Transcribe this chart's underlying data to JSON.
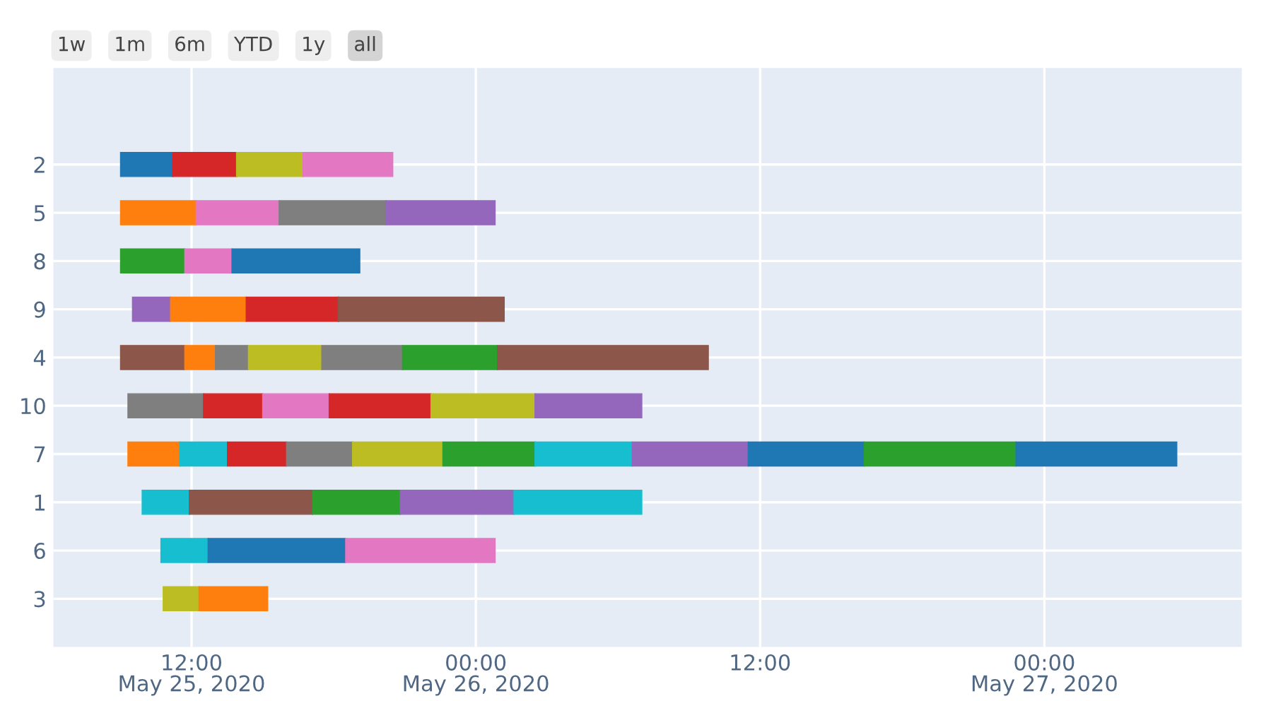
{
  "chart_data": {
    "type": "bar",
    "orientation": "horizontal",
    "categories": [
      "2",
      "5",
      "8",
      "9",
      "4",
      "10",
      "7",
      "1",
      "6",
      "3"
    ],
    "series": [
      {
        "values": [
          0.092,
          0.133,
          0.113,
          0.067,
          0.113,
          0.133,
          0.092,
          0.083,
          0.083,
          0.063
        ],
        "base": [
          18407.375,
          18407.375,
          18407.375,
          18407.396,
          18407.375,
          18407.388,
          18407.388,
          18407.413,
          18407.446,
          18407.45
        ],
        "colors": [
          "#1f77b4",
          "#ff7f0e",
          "#2ca02c",
          "#9467bd",
          "#8c564b",
          "#7f7f7f",
          "#ff7f0e",
          "#17becf",
          "#17becf",
          "#bcbd22"
        ]
      },
      {
        "values": [
          0.113,
          0.146,
          0.083,
          0.133,
          0.054,
          0.104,
          0.083,
          0.217,
          0.242,
          0.121
        ],
        "base": [
          18407.467,
          18407.508,
          18407.488,
          18407.463,
          18407.488,
          18407.521,
          18407.479,
          18407.496,
          18407.529,
          18407.513
        ],
        "colors": [
          "#d62728",
          "#e377c2",
          "#e377c2",
          "#ff7f0e",
          "#ff7f0e",
          "#d62728",
          "#17becf",
          "#8c564b",
          "#1f77b4",
          "#ff7f0e"
        ]
      },
      {
        "values": [
          0.117,
          0.188,
          0.225,
          0.163,
          0.058,
          0.117,
          0.104,
          0.154,
          0.263,
          null
        ],
        "base": [
          18407.579,
          18407.654,
          18407.571,
          18407.596,
          18407.542,
          18407.625,
          18407.563,
          18407.713,
          18407.771,
          null
        ],
        "colors": [
          "#bcbd22",
          "#7f7f7f",
          "#1f77b4",
          "#d62728",
          "#7f7f7f",
          "#e377c2",
          "#d62728",
          "#2ca02c",
          "#e377c2",
          null
        ]
      },
      {
        "values": [
          0.158,
          0.192,
          null,
          0.292,
          0.129,
          0.179,
          0.117,
          0.2,
          null,
          null
        ],
        "base": [
          18407.696,
          18407.842,
          null,
          18407.758,
          18407.6,
          18407.742,
          18407.667,
          18407.867,
          null,
          null
        ],
        "colors": [
          "#e377c2",
          "#9467bd",
          null,
          "#8c564b",
          "#bcbd22",
          "#d62728",
          "#7f7f7f",
          "#9467bd",
          null,
          null
        ]
      },
      {
        "values": [
          null,
          null,
          null,
          null,
          0.142,
          0.183,
          0.158,
          0.225,
          null,
          null
        ],
        "base": [
          null,
          null,
          null,
          null,
          18407.729,
          18407.921,
          18407.783,
          18408.067,
          null,
          null
        ],
        "colors": [
          null,
          null,
          null,
          null,
          "#7f7f7f",
          "#bcbd22",
          "#bcbd22",
          "#17becf",
          null,
          null
        ]
      },
      {
        "values": [
          null,
          null,
          null,
          null,
          0.167,
          0.188,
          0.163,
          null,
          null,
          null
        ],
        "base": [
          null,
          null,
          null,
          null,
          18407.871,
          18408.104,
          18407.942,
          null,
          null,
          null
        ],
        "colors": [
          null,
          null,
          null,
          null,
          "#2ca02c",
          "#9467bd",
          "#2ca02c",
          null,
          null,
          null
        ]
      },
      {
        "values": [
          null,
          null,
          null,
          null,
          0.371,
          null,
          0.171,
          null,
          null,
          null
        ],
        "base": [
          null,
          null,
          null,
          null,
          18408.038,
          null,
          18408.104,
          null,
          null,
          null
        ],
        "colors": [
          null,
          null,
          null,
          null,
          "#8c564b",
          null,
          "#17becf",
          null,
          null,
          null
        ]
      },
      {
        "values": [
          null,
          null,
          null,
          null,
          null,
          null,
          0.204,
          null,
          null,
          null
        ],
        "base": [
          null,
          null,
          null,
          null,
          null,
          null,
          18408.275,
          null,
          null,
          null
        ],
        "colors": [
          null,
          null,
          null,
          null,
          null,
          null,
          "#9467bd",
          null,
          null,
          null
        ]
      },
      {
        "values": [
          null,
          null,
          null,
          null,
          null,
          null,
          0.204,
          null,
          null,
          null
        ],
        "base": [
          null,
          null,
          null,
          null,
          null,
          null,
          18408.479,
          null,
          null,
          null
        ],
        "colors": [
          null,
          null,
          null,
          null,
          null,
          null,
          "#1f77b4",
          null,
          null,
          null
        ]
      },
      {
        "values": [
          null,
          null,
          null,
          null,
          null,
          null,
          0.267,
          null,
          null,
          null
        ],
        "base": [
          null,
          null,
          null,
          null,
          null,
          null,
          18408.683,
          null,
          null,
          null
        ],
        "colors": [
          null,
          null,
          null,
          null,
          null,
          null,
          "#2ca02c",
          null,
          null,
          null
        ]
      },
      {
        "values": [
          null,
          null,
          null,
          null,
          null,
          null,
          0.283,
          null,
          null,
          null
        ],
        "base": [
          null,
          null,
          null,
          null,
          null,
          null,
          18408.95,
          null,
          null,
          null
        ],
        "colors": [
          null,
          null,
          null,
          null,
          null,
          null,
          "#1f77b4",
          null,
          null,
          null
        ]
      }
    ],
    "xlim": [
      "2020-05-25T06:10",
      "2020-05-27T08:20"
    ],
    "xticks": [
      {
        "value": "2020-05-25T12:00",
        "label": "12:00\nMay 25, 2020"
      },
      {
        "value": "2020-05-26T00:00",
        "label": "00:00\nMay 26, 2020"
      },
      {
        "value": "2020-05-26T12:00",
        "label": "12:00"
      },
      {
        "value": "2020-05-27T00:00",
        "label": "00:00\nMay 27, 2020"
      }
    ],
    "annotations": [
      "1w",
      "1m",
      "6m",
      "YTD",
      "1y",
      "all"
    ],
    "grid": true
  }
}
